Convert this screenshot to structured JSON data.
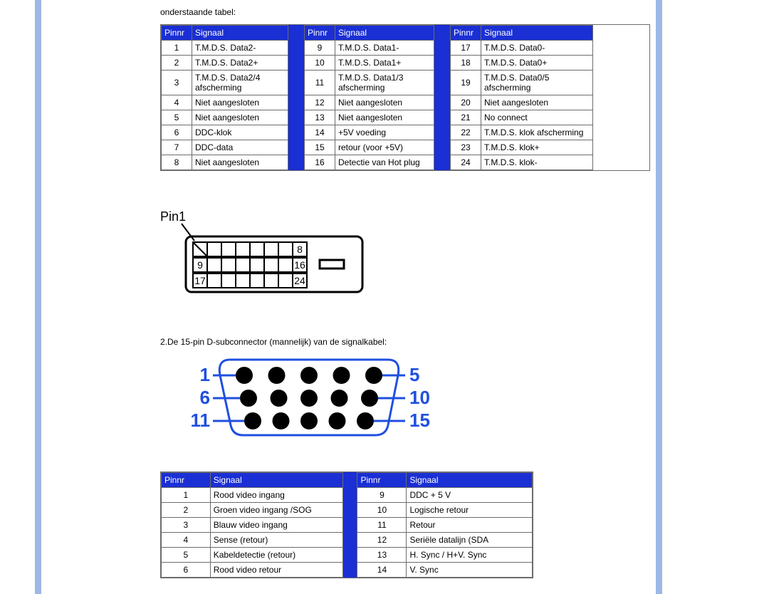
{
  "intro_text": "onderstaande tabel:",
  "colors": {
    "header_bg": "#1a2fd4",
    "header_text": "#ffffff",
    "sidebar": "#9db7e6",
    "border": "#6c6c6c",
    "vga_blue": "#1f4fe0"
  },
  "headers": {
    "pin": "Pinnr",
    "signal": "Signaal"
  },
  "tables_top": [
    {
      "rows": [
        {
          "pin": "1",
          "signal": "T.M.D.S. Data2-"
        },
        {
          "pin": "2",
          "signal": "T.M.D.S. Data2+"
        },
        {
          "pin": "3",
          "signal": "T.M.D.S. Data2/4 afscherming"
        },
        {
          "pin": "4",
          "signal": "Niet aangesloten"
        },
        {
          "pin": "5",
          "signal": "Niet aangesloten"
        },
        {
          "pin": "6",
          "signal": "DDC-klok"
        },
        {
          "pin": "7",
          "signal": "DDC-data"
        },
        {
          "pin": "8",
          "signal": "Niet aangesloten"
        }
      ]
    },
    {
      "rows": [
        {
          "pin": "9",
          "signal": "T.M.D.S. Data1-"
        },
        {
          "pin": "10",
          "signal": "T.M.D.S. Data1+"
        },
        {
          "pin": "11",
          "signal": "T.M.D.S. Data1/3 afscherming"
        },
        {
          "pin": "12",
          "signal": "Niet aangesloten"
        },
        {
          "pin": "13",
          "signal": "Niet aangesloten"
        },
        {
          "pin": "14",
          "signal": "+5V voeding"
        },
        {
          "pin": "15",
          "signal": "retour (voor +5V)"
        },
        {
          "pin": "16",
          "signal": "Detectie van Hot plug"
        }
      ]
    },
    {
      "rows": [
        {
          "pin": "17",
          "signal": "T.M.D.S. Data0-"
        },
        {
          "pin": "18",
          "signal": "T.M.D.S. Data0+"
        },
        {
          "pin": "19",
          "signal": "T.M.D.S. Data0/5 afscherming"
        },
        {
          "pin": "20",
          "signal": "Niet aangesloten"
        },
        {
          "pin": "21",
          "signal": "No connect"
        },
        {
          "pin": "22",
          "signal": "T.M.D.S. klok afscherming"
        },
        {
          "pin": "23",
          "signal": "T.M.D.S. klok+"
        },
        {
          "pin": "24",
          "signal": "T.M.D.S. klok-"
        }
      ]
    }
  ],
  "dvi": {
    "label": "Pin1",
    "label_fontsize": 18,
    "stroke": "#000000",
    "stroke_width": 3,
    "fill": "#ffffff",
    "text_fontsize": 14,
    "box_numbers": {
      "r1_end": "8",
      "r2_start": "9",
      "r2_end": "16",
      "r3_start": "17",
      "r3_end": "24"
    }
  },
  "subconn_text": "2.De 15-pin D-subconnector (mannelijk) van de signalkabel:",
  "vga": {
    "numbers_left": [
      "1",
      "6",
      "11"
    ],
    "numbers_right": [
      "5",
      "10",
      "15"
    ],
    "number_color": "#1f4fe0",
    "number_fontsize": 26,
    "number_weight": "bold",
    "outline_color": "#1f4fe0",
    "pin_fill": "#000000",
    "line_color": "#1f4fe0",
    "rows": [
      5,
      5,
      5
    ]
  },
  "tables_bottom": [
    {
      "rows": [
        {
          "pin": "1",
          "signal": "Rood video ingang"
        },
        {
          "pin": "2",
          "signal": "Groen video ingang /SOG"
        },
        {
          "pin": "3",
          "signal": "Blauw video ingang"
        },
        {
          "pin": "4",
          "signal": "Sense (retour)"
        },
        {
          "pin": "5",
          "signal": "Kabeldetectie (retour)"
        },
        {
          "pin": "6",
          "signal": "Rood video retour"
        }
      ]
    },
    {
      "rows": [
        {
          "pin": "9",
          "signal": "DDC + 5 V"
        },
        {
          "pin": "10",
          "signal": "Logische retour"
        },
        {
          "pin": "11",
          "signal": "Retour"
        },
        {
          "pin": "12",
          "signal": "Seriële datalijn (SDA"
        },
        {
          "pin": "13",
          "signal": "H. Sync / H+V. Sync"
        },
        {
          "pin": "14",
          "signal": "V. Sync"
        }
      ]
    }
  ]
}
